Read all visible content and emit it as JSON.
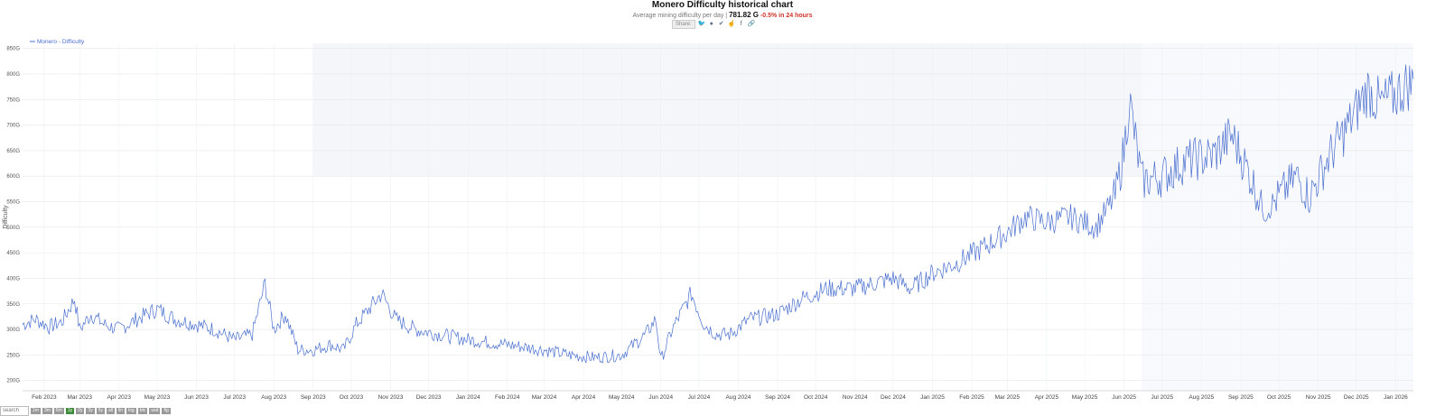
{
  "header": {
    "title": "Monero Difficulty historical chart",
    "subtitle_prefix": "Average mining difficulty per day |",
    "current_value": "781.82 G",
    "change_text": "-0.5% in 24 hours",
    "share_label": "Share:",
    "share_icons": [
      "twitter-icon",
      "reddit-icon",
      "vk-icon",
      "like-icon",
      "facebook-icon",
      "link-icon"
    ]
  },
  "colors": {
    "line": "#4a6fcf",
    "grid": "#e6e6e6",
    "band": "#f4f6fa",
    "change_negative": "#d0342c",
    "active_button": "#3c8c3c"
  },
  "chart_data": {
    "type": "line",
    "legend": "Monero - Difficulty",
    "legend_position": "top-left",
    "ylabel": "Difficulty",
    "y_unit": "G",
    "ylim": [
      180,
      860
    ],
    "yticks": [
      "200G",
      "250G",
      "300G",
      "350G",
      "400G",
      "450G",
      "500G",
      "550G",
      "600G",
      "650G",
      "700G",
      "750G",
      "800G",
      "850G"
    ],
    "xticks": [
      "Feb 2023",
      "Mar 2023",
      "Apr 2023",
      "May 2023",
      "Jun 2023",
      "Jul 2023",
      "Aug 2023",
      "Sep 2023",
      "Oct 2023",
      "Nov 2023",
      "Dec 2023",
      "Jan 2024",
      "Feb 2024",
      "Mar 2024",
      "Apr 2024",
      "May 2024",
      "Jun 2024",
      "Jul 2024",
      "Aug 2024",
      "Sep 2024",
      "Oct 2024",
      "Nov 2024",
      "Dec 2024",
      "Jan 2025",
      "Feb 2025",
      "Mar 2025",
      "Apr 2025",
      "May 2025",
      "Jun 2025",
      "Jul 2025",
      "Aug 2025",
      "Sep 2025",
      "Oct 2025",
      "Nov 2025",
      "Dec 2025",
      "Jan 2026"
    ],
    "series": [
      {
        "name": "Monero - Difficulty",
        "anchor_dates": [
          "2023-01-15",
          "2023-01-25",
          "2023-02-05",
          "2023-02-15",
          "2023-02-25",
          "2023-03-01",
          "2023-03-10",
          "2023-03-20",
          "2023-04-01",
          "2023-04-15",
          "2023-05-01",
          "2023-05-15",
          "2023-06-01",
          "2023-06-15",
          "2023-07-01",
          "2023-07-15",
          "2023-07-25",
          "2023-08-01",
          "2023-08-10",
          "2023-08-20",
          "2023-09-01",
          "2023-09-15",
          "2023-09-25",
          "2023-10-05",
          "2023-10-15",
          "2023-10-25",
          "2023-11-05",
          "2023-11-20",
          "2023-12-10",
          "2024-01-01",
          "2024-02-01",
          "2024-03-01",
          "2024-03-20",
          "2024-04-10",
          "2024-05-01",
          "2024-05-20",
          "2024-05-28",
          "2024-06-01",
          "2024-06-10",
          "2024-06-25",
          "2024-07-05",
          "2024-07-15",
          "2024-07-25",
          "2024-08-10",
          "2024-09-01",
          "2024-09-20",
          "2024-10-10",
          "2024-11-01",
          "2024-12-01",
          "2024-12-15",
          "2025-01-01",
          "2025-01-20",
          "2025-02-10",
          "2025-03-01",
          "2025-03-15",
          "2025-04-01",
          "2025-04-20",
          "2025-05-10",
          "2025-05-25",
          "2025-06-01",
          "2025-06-05",
          "2025-06-15",
          "2025-07-01",
          "2025-07-20",
          "2025-08-10",
          "2025-08-25",
          "2025-09-05",
          "2025-09-20",
          "2025-10-01",
          "2025-10-15",
          "2025-10-25",
          "2025-11-10",
          "2025-11-25",
          "2025-12-10",
          "2025-12-20",
          "2026-01-01",
          "2026-01-10",
          "2026-01-15"
        ],
        "anchor_values": [
          310,
          320,
          305,
          315,
          360,
          300,
          330,
          310,
          300,
          320,
          340,
          320,
          310,
          300,
          280,
          290,
          390,
          300,
          330,
          260,
          260,
          270,
          260,
          310,
          340,
          370,
          320,
          300,
          290,
          280,
          270,
          260,
          250,
          245,
          250,
          290,
          320,
          240,
          300,
          370,
          310,
          290,
          290,
          320,
          330,
          360,
          380,
          380,
          400,
          380,
          410,
          430,
          460,
          490,
          520,
          510,
          520,
          500,
          560,
          650,
          750,
          590,
          600,
          630,
          640,
          680,
          620,
          530,
          560,
          600,
          560,
          640,
          700,
          770,
          740,
          760,
          780,
          780
        ]
      }
    ]
  },
  "bottom_bar": {
    "search_placeholder": "search",
    "buttons": [
      "1m",
      "3m",
      "6m",
      "1y",
      "2y",
      "3y",
      "5y",
      "all",
      "lin",
      "log",
      "btc",
      "usd",
      "fig"
    ],
    "active_button": "1y"
  }
}
